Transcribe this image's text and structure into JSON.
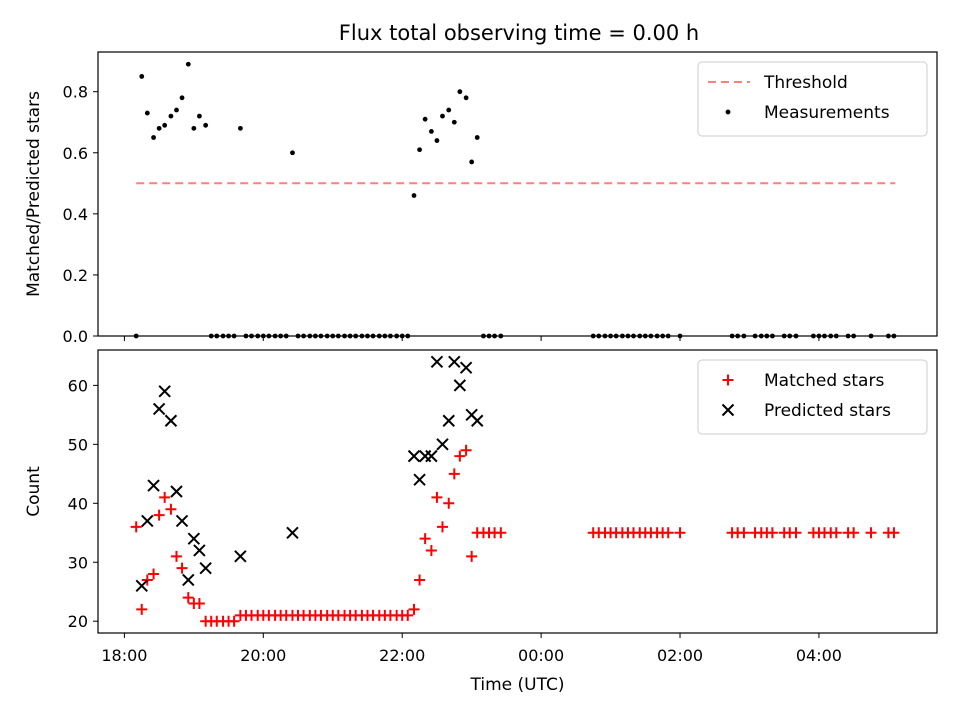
{
  "figure": {
    "title": "Flux total observing time = 0.00 h"
  },
  "chart_data": [
    {
      "type": "scatter",
      "panel": "top",
      "title": "Flux total observing time = 0.00 h",
      "xlabel": "",
      "ylabel": "Matched/Predicted stars",
      "x_unit": "hours since 18:00 UTC",
      "xlim": [
        -0.38,
        11.7
      ],
      "ylim": [
        0,
        0.93
      ],
      "yticks": [
        0.0,
        0.2,
        0.4,
        0.6,
        0.8
      ],
      "ytick_labels": [
        "0.0",
        "0.2",
        "0.4",
        "0.6",
        "0.8"
      ],
      "legend_position": "top-right",
      "threshold": {
        "name": "Threshold",
        "value": 0.5,
        "x_start": 0.17,
        "x_end": 11.1,
        "color": "#ff7f7f"
      },
      "series": [
        {
          "name": "Measurements",
          "marker": "dot",
          "color": "#000000",
          "points": [
            [
              0.17,
              0.0
            ],
            [
              0.25,
              0.85
            ],
            [
              0.33,
              0.73
            ],
            [
              0.42,
              0.65
            ],
            [
              0.5,
              0.68
            ],
            [
              0.58,
              0.69
            ],
            [
              0.67,
              0.72
            ],
            [
              0.75,
              0.74
            ],
            [
              0.83,
              0.78
            ],
            [
              0.92,
              0.89
            ],
            [
              1.0,
              0.68
            ],
            [
              1.08,
              0.72
            ],
            [
              1.17,
              0.69
            ],
            [
              1.25,
              0.0
            ],
            [
              1.33,
              0.0
            ],
            [
              1.42,
              0.0
            ],
            [
              1.5,
              0.0
            ],
            [
              1.58,
              0.0
            ],
            [
              1.67,
              0.68
            ],
            [
              1.75,
              0.0
            ],
            [
              1.83,
              0.0
            ],
            [
              1.92,
              0.0
            ],
            [
              2.0,
              0.0
            ],
            [
              2.08,
              0.0
            ],
            [
              2.17,
              0.0
            ],
            [
              2.25,
              0.0
            ],
            [
              2.33,
              0.0
            ],
            [
              2.42,
              0.6
            ],
            [
              2.5,
              0.0
            ],
            [
              2.58,
              0.0
            ],
            [
              2.67,
              0.0
            ],
            [
              2.75,
              0.0
            ],
            [
              2.83,
              0.0
            ],
            [
              2.92,
              0.0
            ],
            [
              3.0,
              0.0
            ],
            [
              3.08,
              0.0
            ],
            [
              3.17,
              0.0
            ],
            [
              3.25,
              0.0
            ],
            [
              3.33,
              0.0
            ],
            [
              3.42,
              0.0
            ],
            [
              3.5,
              0.0
            ],
            [
              3.58,
              0.0
            ],
            [
              3.67,
              0.0
            ],
            [
              3.75,
              0.0
            ],
            [
              3.83,
              0.0
            ],
            [
              3.92,
              0.0
            ],
            [
              4.0,
              0.0
            ],
            [
              4.08,
              0.0
            ],
            [
              4.17,
              0.46
            ],
            [
              4.25,
              0.61
            ],
            [
              4.33,
              0.71
            ],
            [
              4.42,
              0.67
            ],
            [
              4.5,
              0.64
            ],
            [
              4.58,
              0.72
            ],
            [
              4.67,
              0.74
            ],
            [
              4.75,
              0.7
            ],
            [
              4.83,
              0.8
            ],
            [
              4.92,
              0.78
            ],
            [
              5.0,
              0.57
            ],
            [
              5.08,
              0.65
            ],
            [
              5.17,
              0.0
            ],
            [
              5.25,
              0.0
            ],
            [
              5.33,
              0.0
            ],
            [
              5.42,
              0.0
            ],
            [
              6.75,
              0.0
            ],
            [
              6.83,
              0.0
            ],
            [
              6.92,
              0.0
            ],
            [
              7.0,
              0.0
            ],
            [
              7.08,
              0.0
            ],
            [
              7.17,
              0.0
            ],
            [
              7.25,
              0.0
            ],
            [
              7.33,
              0.0
            ],
            [
              7.42,
              0.0
            ],
            [
              7.5,
              0.0
            ],
            [
              7.58,
              0.0
            ],
            [
              7.67,
              0.0
            ],
            [
              7.75,
              0.0
            ],
            [
              7.83,
              0.0
            ],
            [
              8.0,
              0.0
            ],
            [
              8.75,
              0.0
            ],
            [
              8.83,
              0.0
            ],
            [
              8.92,
              0.0
            ],
            [
              9.08,
              0.0
            ],
            [
              9.17,
              0.0
            ],
            [
              9.25,
              0.0
            ],
            [
              9.33,
              0.0
            ],
            [
              9.5,
              0.0
            ],
            [
              9.58,
              0.0
            ],
            [
              9.67,
              0.0
            ],
            [
              9.92,
              0.0
            ],
            [
              10.0,
              0.0
            ],
            [
              10.08,
              0.0
            ],
            [
              10.17,
              0.0
            ],
            [
              10.25,
              0.0
            ],
            [
              10.42,
              0.0
            ],
            [
              10.5,
              0.0
            ],
            [
              10.75,
              0.0
            ],
            [
              11.0,
              0.0
            ],
            [
              11.08,
              0.0
            ]
          ]
        }
      ]
    },
    {
      "type": "scatter",
      "panel": "bottom",
      "title": "",
      "xlabel": "Time (UTC)",
      "ylabel": "Count",
      "x_unit": "hours since 18:00 UTC",
      "xlim": [
        -0.38,
        11.7
      ],
      "ylim": [
        18,
        66
      ],
      "yticks": [
        20,
        30,
        40,
        50,
        60
      ],
      "ytick_labels": [
        "20",
        "30",
        "40",
        "50",
        "60"
      ],
      "xticks": [
        0,
        2,
        4,
        6,
        8,
        10
      ],
      "xtick_labels": [
        "18:00",
        "20:00",
        "22:00",
        "00:00",
        "02:00",
        "04:00"
      ],
      "legend_position": "top-right",
      "series": [
        {
          "name": "Matched stars",
          "marker": "plus",
          "color": "#ff0000",
          "points": [
            [
              0.17,
              36
            ],
            [
              0.25,
              22
            ],
            [
              0.33,
              27
            ],
            [
              0.42,
              28
            ],
            [
              0.5,
              38
            ],
            [
              0.58,
              41
            ],
            [
              0.67,
              39
            ],
            [
              0.75,
              31
            ],
            [
              0.83,
              29
            ],
            [
              0.92,
              24
            ],
            [
              1.0,
              23
            ],
            [
              1.08,
              23
            ],
            [
              1.17,
              20
            ],
            [
              1.25,
              20
            ],
            [
              1.33,
              20
            ],
            [
              1.42,
              20
            ],
            [
              1.5,
              20
            ],
            [
              1.58,
              20
            ],
            [
              1.67,
              21
            ],
            [
              1.75,
              21
            ],
            [
              1.83,
              21
            ],
            [
              1.92,
              21
            ],
            [
              2.0,
              21
            ],
            [
              2.08,
              21
            ],
            [
              2.17,
              21
            ],
            [
              2.25,
              21
            ],
            [
              2.33,
              21
            ],
            [
              2.42,
              21
            ],
            [
              2.5,
              21
            ],
            [
              2.58,
              21
            ],
            [
              2.67,
              21
            ],
            [
              2.75,
              21
            ],
            [
              2.83,
              21
            ],
            [
              2.92,
              21
            ],
            [
              3.0,
              21
            ],
            [
              3.08,
              21
            ],
            [
              3.17,
              21
            ],
            [
              3.25,
              21
            ],
            [
              3.33,
              21
            ],
            [
              3.42,
              21
            ],
            [
              3.5,
              21
            ],
            [
              3.58,
              21
            ],
            [
              3.67,
              21
            ],
            [
              3.75,
              21
            ],
            [
              3.83,
              21
            ],
            [
              3.92,
              21
            ],
            [
              4.0,
              21
            ],
            [
              4.08,
              21
            ],
            [
              4.17,
              22
            ],
            [
              4.25,
              27
            ],
            [
              4.33,
              34
            ],
            [
              4.42,
              32
            ],
            [
              4.5,
              41
            ],
            [
              4.58,
              36
            ],
            [
              4.67,
              40
            ],
            [
              4.75,
              45
            ],
            [
              4.83,
              48
            ],
            [
              4.92,
              49
            ],
            [
              5.0,
              31
            ],
            [
              5.08,
              35
            ],
            [
              5.17,
              35
            ],
            [
              5.25,
              35
            ],
            [
              5.33,
              35
            ],
            [
              5.42,
              35
            ],
            [
              6.75,
              35
            ],
            [
              6.83,
              35
            ],
            [
              6.92,
              35
            ],
            [
              7.0,
              35
            ],
            [
              7.08,
              35
            ],
            [
              7.17,
              35
            ],
            [
              7.25,
              35
            ],
            [
              7.33,
              35
            ],
            [
              7.42,
              35
            ],
            [
              7.5,
              35
            ],
            [
              7.58,
              35
            ],
            [
              7.67,
              35
            ],
            [
              7.75,
              35
            ],
            [
              7.83,
              35
            ],
            [
              8.0,
              35
            ],
            [
              8.75,
              35
            ],
            [
              8.83,
              35
            ],
            [
              8.92,
              35
            ],
            [
              9.08,
              35
            ],
            [
              9.17,
              35
            ],
            [
              9.25,
              35
            ],
            [
              9.33,
              35
            ],
            [
              9.5,
              35
            ],
            [
              9.58,
              35
            ],
            [
              9.67,
              35
            ],
            [
              9.92,
              35
            ],
            [
              10.0,
              35
            ],
            [
              10.08,
              35
            ],
            [
              10.17,
              35
            ],
            [
              10.25,
              35
            ],
            [
              10.42,
              35
            ],
            [
              10.5,
              35
            ],
            [
              10.75,
              35
            ],
            [
              11.0,
              35
            ],
            [
              11.08,
              35
            ]
          ]
        },
        {
          "name": "Predicted stars",
          "marker": "x",
          "color": "#000000",
          "points": [
            [
              0.25,
              26
            ],
            [
              0.33,
              37
            ],
            [
              0.42,
              43
            ],
            [
              0.5,
              56
            ],
            [
              0.58,
              59
            ],
            [
              0.67,
              54
            ],
            [
              0.75,
              42
            ],
            [
              0.83,
              37
            ],
            [
              0.92,
              27
            ],
            [
              1.0,
              34
            ],
            [
              1.08,
              32
            ],
            [
              1.17,
              29
            ],
            [
              1.67,
              31
            ],
            [
              2.42,
              35
            ],
            [
              4.17,
              48
            ],
            [
              4.25,
              44
            ],
            [
              4.33,
              48
            ],
            [
              4.42,
              48
            ],
            [
              4.5,
              64
            ],
            [
              4.58,
              50
            ],
            [
              4.67,
              54
            ],
            [
              4.75,
              64
            ],
            [
              4.83,
              60
            ],
            [
              4.92,
              63
            ],
            [
              5.0,
              55
            ],
            [
              5.08,
              54
            ]
          ]
        }
      ]
    }
  ]
}
